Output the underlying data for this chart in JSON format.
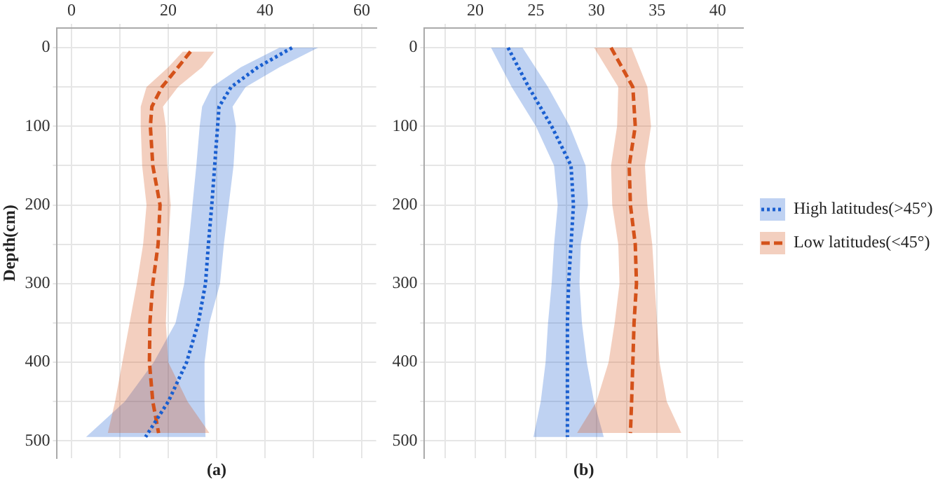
{
  "chart_data": [
    {
      "type": "line",
      "orientation": "horizontal",
      "ylabel": "Depth(cm)",
      "xlabel": "(a)",
      "xlim": [
        -3,
        63
      ],
      "xticks": [
        0,
        {
          "value": 10,
          "label": null
        },
        20,
        {
          "value": 30,
          "label": null
        },
        40,
        {
          "value": 50,
          "label": null
        },
        60
      ],
      "ylim": [
        522,
        -25
      ],
      "yticks": [
        0,
        {
          "value": 50,
          "label": null
        },
        100,
        {
          "value": 150,
          "label": null
        },
        200,
        {
          "value": 250,
          "label": null
        },
        300,
        {
          "value": 350,
          "label": null
        },
        400,
        {
          "value": 450,
          "label": null
        },
        500
      ],
      "grid": true,
      "legend": false,
      "series": [
        {
          "color": "#1a5fd0",
          "line_style": "dotted",
          "x": [
            0,
            25,
            50,
            75,
            100,
            150,
            200,
            250,
            300,
            350,
            400,
            450,
            495
          ],
          "values": [
            45.6,
            38.5,
            33,
            30.5,
            30.2,
            29.6,
            29,
            28.3,
            27.7,
            26.2,
            23.8,
            20,
            15.3
          ],
          "lower": [
            43,
            35,
            29,
            27,
            26.5,
            25.8,
            25,
            24.2,
            23.3,
            21.5,
            17,
            11,
            3
          ],
          "upper": [
            51,
            43,
            36,
            33.3,
            34,
            33.5,
            32.5,
            31.5,
            30.7,
            28.5,
            27.5,
            27.5,
            27.7
          ]
        },
        {
          "color": "#d4521a",
          "line_style": "dashed",
          "x": [
            5,
            25,
            50,
            75,
            100,
            150,
            200,
            250,
            300,
            350,
            400,
            450,
            490
          ],
          "values": [
            24.6,
            22,
            18.7,
            16.6,
            16.3,
            16.8,
            18.3,
            17.9,
            16.8,
            16.2,
            16.1,
            16.8,
            18
          ],
          "lower": [
            23,
            20,
            15.5,
            14.3,
            14.3,
            14.6,
            15.5,
            14.8,
            13.5,
            12,
            10.5,
            9,
            7.5
          ],
          "upper": [
            29.5,
            27,
            22,
            18.9,
            19.5,
            19.8,
            20.5,
            20,
            19.8,
            19.5,
            20,
            24,
            28.5
          ]
        }
      ]
    },
    {
      "type": "line",
      "orientation": "horizontal",
      "xlabel": "(b)",
      "xlim": [
        15.8,
        42.1
      ],
      "xticks": [
        {
          "value": 17.5,
          "label": null
        },
        20,
        {
          "value": 22.5,
          "label": null
        },
        25,
        {
          "value": 27.5,
          "label": null
        },
        30,
        {
          "value": 32.5,
          "label": null
        },
        35,
        {
          "value": 37.5,
          "label": null
        },
        40
      ],
      "ylim": [
        522,
        -25
      ],
      "yticks": [
        0,
        {
          "value": 50,
          "label": null
        },
        100,
        {
          "value": 150,
          "label": null
        },
        200,
        {
          "value": 250,
          "label": null
        },
        300,
        {
          "value": 350,
          "label": null
        },
        400,
        {
          "value": 450,
          "label": null
        },
        500
      ],
      "grid": true,
      "legend": "right",
      "series": [
        {
          "name": "High latitudes(>45°)",
          "color": "#1a5fd0",
          "line_style": "dotted",
          "x": [
            0,
            50,
            100,
            150,
            200,
            250,
            300,
            350,
            400,
            450,
            495
          ],
          "values": [
            22.7,
            24.4,
            26.3,
            27.9,
            28.1,
            27.9,
            27.7,
            27.6,
            27.6,
            27.6,
            27.6
          ],
          "lower": [
            21.3,
            23,
            25,
            26.5,
            26.8,
            26.5,
            26.3,
            26,
            25.8,
            25.4,
            24.8
          ],
          "upper": [
            23.9,
            26,
            27.8,
            29.1,
            29.3,
            28.7,
            28.6,
            28.8,
            29.2,
            29.8,
            30.6
          ]
        },
        {
          "name": "Low latitudes(<45°)",
          "color": "#d4521a",
          "line_style": "dashed",
          "x": [
            0,
            50,
            100,
            150,
            200,
            250,
            300,
            350,
            400,
            450,
            490
          ],
          "values": [
            31.2,
            33,
            33.2,
            32.7,
            32.8,
            33.2,
            33.3,
            33.1,
            33,
            32.9,
            32.8
          ],
          "lower": [
            29.8,
            31.8,
            31.7,
            31.2,
            31.3,
            31.8,
            31.9,
            31.5,
            31,
            30,
            28.4
          ],
          "upper": [
            32.9,
            34.2,
            34.5,
            34,
            34.2,
            34.6,
            34.8,
            35,
            35.2,
            35.8,
            37
          ]
        }
      ]
    }
  ]
}
